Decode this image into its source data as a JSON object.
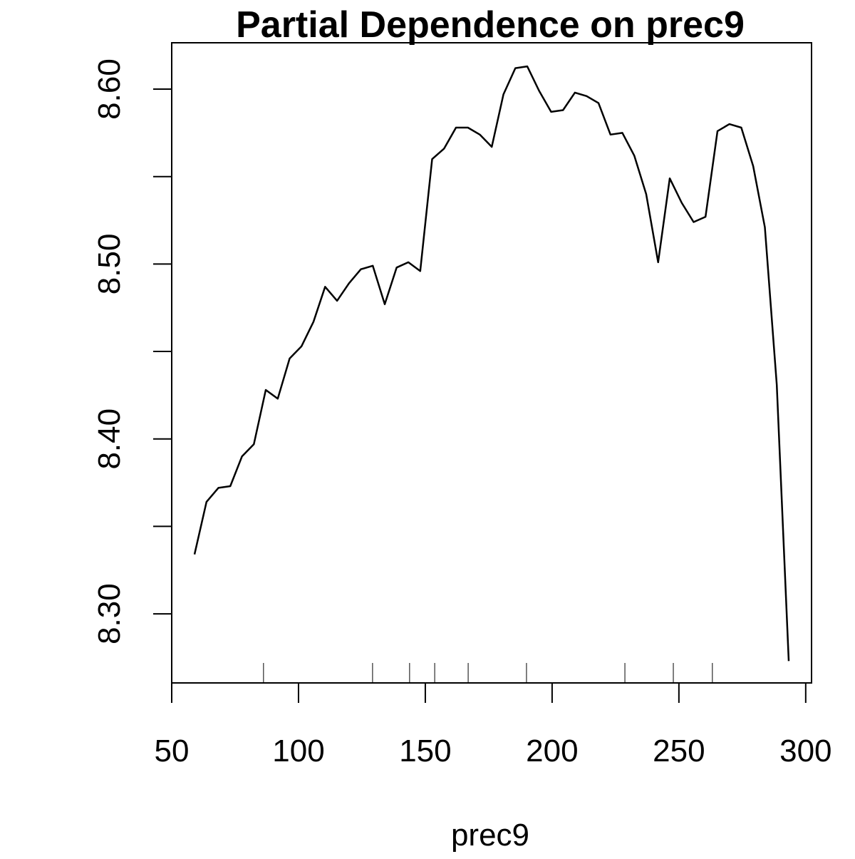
{
  "chart_data": {
    "type": "line",
    "title": "Partial Dependence on prec9",
    "x_label": "prec9",
    "x": [
      59.0,
      63.7,
      68.4,
      73.1,
      77.7,
      82.4,
      87.1,
      91.8,
      96.5,
      101.2,
      105.9,
      110.5,
      115.2,
      119.9,
      124.6,
      129.3,
      134.0,
      138.7,
      143.3,
      148.0,
      152.7,
      157.4,
      162.1,
      166.8,
      171.5,
      176.2,
      180.8,
      185.5,
      190.2,
      194.9,
      199.6,
      204.3,
      209.0,
      213.6,
      218.3,
      223.0,
      227.7,
      232.4,
      237.1,
      241.8,
      246.4,
      251.1,
      255.8,
      260.5,
      265.2,
      269.9,
      274.6,
      279.3,
      283.9,
      288.6,
      293.3
    ],
    "values": [
      8.334,
      8.364,
      8.372,
      8.373,
      8.39,
      8.397,
      8.428,
      8.423,
      8.446,
      8.453,
      8.467,
      8.487,
      8.479,
      8.489,
      8.497,
      8.499,
      8.477,
      8.498,
      8.501,
      8.496,
      8.56,
      8.566,
      8.578,
      8.578,
      8.574,
      8.567,
      8.597,
      8.612,
      8.613,
      8.599,
      8.587,
      8.588,
      8.598,
      8.596,
      8.592,
      8.574,
      8.575,
      8.562,
      8.54,
      8.501,
      8.549,
      8.535,
      8.524,
      8.527,
      8.576,
      8.58,
      8.578,
      8.556,
      8.521,
      8.431,
      8.273
    ],
    "color": "#000000",
    "rug": [
      86.2,
      129.2,
      143.8,
      153.7,
      166.9,
      189.9,
      228.7,
      247.8,
      263.2
    ],
    "xlim": [
      50,
      302.3
    ],
    "ylim": [
      8.2605,
      8.6265
    ],
    "xticks": [
      50,
      100,
      150,
      200,
      250,
      300
    ],
    "yticks": [
      {
        "value": 8.3,
        "label": "8.30"
      },
      {
        "value": 8.35,
        "label": null
      },
      {
        "value": 8.4,
        "label": "8.40"
      },
      {
        "value": 8.45,
        "label": null
      },
      {
        "value": 8.5,
        "label": "8.50"
      },
      {
        "value": 8.55,
        "label": null
      },
      {
        "value": 8.6,
        "label": "8.60"
      }
    ]
  }
}
